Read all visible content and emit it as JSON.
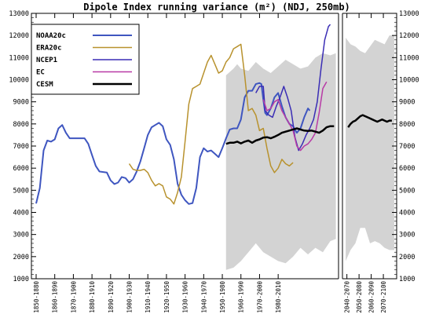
{
  "chart_data": {
    "type": "line",
    "title": "Dipole Index running variance (m²) (NDJ, 250mb)",
    "ylim": [
      1000,
      13000
    ],
    "yticks": [
      1000,
      2000,
      3000,
      4000,
      5000,
      6000,
      7000,
      8000,
      9000,
      10000,
      11000,
      12000,
      13000
    ],
    "xlim_years": [
      1850,
      2100
    ],
    "xticks": [
      {
        "label": "1850-1880",
        "year": 1850
      },
      {
        "label": "1860-1890",
        "year": 1860
      },
      {
        "label": "1870-1900",
        "year": 1870
      },
      {
        "label": "1880-1910",
        "year": 1880
      },
      {
        "label": "1890-1920",
        "year": 1890
      },
      {
        "label": "1900-1930",
        "year": 1900
      },
      {
        "label": "1910-1940",
        "year": 1910
      },
      {
        "label": "1920-1950",
        "year": 1920
      },
      {
        "label": "1930-1960",
        "year": 1930
      },
      {
        "label": "1940-1970",
        "year": 1940
      },
      {
        "label": "1950-1980",
        "year": 1950
      },
      {
        "label": "1960-1990",
        "year": 1960
      },
      {
        "label": "1970-2000",
        "year": 1970
      },
      {
        "label": "1980-2010",
        "year": 1980
      },
      {
        "label": "2040-2070",
        "year": 2023
      },
      {
        "label": "2050-2080",
        "year": 2033
      },
      {
        "label": "2060-2090",
        "year": 2043
      },
      {
        "label": "2070-2100",
        "year": 2053
      }
    ],
    "legend_position": "top-left",
    "series": [
      {
        "name": "NOAA20c",
        "color": "#3f56c0",
        "width": 2,
        "points": [
          [
            1850,
            4400
          ],
          [
            1852,
            5100
          ],
          [
            1854,
            6800
          ],
          [
            1856,
            7250
          ],
          [
            1858,
            7200
          ],
          [
            1860,
            7300
          ],
          [
            1862,
            7800
          ],
          [
            1864,
            7950
          ],
          [
            1866,
            7600
          ],
          [
            1868,
            7350
          ],
          [
            1872,
            7350
          ],
          [
            1876,
            7350
          ],
          [
            1878,
            7100
          ],
          [
            1880,
            6600
          ],
          [
            1882,
            6100
          ],
          [
            1884,
            5850
          ],
          [
            1888,
            5800
          ],
          [
            1890,
            5450
          ],
          [
            1892,
            5280
          ],
          [
            1894,
            5350
          ],
          [
            1896,
            5600
          ],
          [
            1898,
            5550
          ],
          [
            1900,
            5350
          ],
          [
            1902,
            5500
          ],
          [
            1904,
            5850
          ],
          [
            1906,
            6300
          ],
          [
            1908,
            6900
          ],
          [
            1910,
            7500
          ],
          [
            1912,
            7850
          ],
          [
            1914,
            7950
          ],
          [
            1916,
            8050
          ],
          [
            1918,
            7900
          ],
          [
            1920,
            7300
          ],
          [
            1922,
            7050
          ],
          [
            1924,
            6400
          ],
          [
            1926,
            5300
          ],
          [
            1928,
            4800
          ],
          [
            1930,
            4550
          ],
          [
            1932,
            4380
          ],
          [
            1934,
            4420
          ],
          [
            1936,
            5100
          ],
          [
            1938,
            6500
          ],
          [
            1940,
            6900
          ],
          [
            1942,
            6750
          ],
          [
            1944,
            6800
          ],
          [
            1946,
            6650
          ],
          [
            1948,
            6500
          ],
          [
            1950,
            6900
          ],
          [
            1952,
            7350
          ],
          [
            1954,
            7750
          ],
          [
            1956,
            7800
          ],
          [
            1958,
            7800
          ],
          [
            1960,
            8200
          ],
          [
            1962,
            9200
          ],
          [
            1964,
            9500
          ],
          [
            1966,
            9500
          ],
          [
            1968,
            9800
          ],
          [
            1970,
            9850
          ],
          [
            1971,
            9800
          ],
          [
            1972,
            9100
          ],
          [
            1973,
            8500
          ],
          [
            1974,
            8400
          ],
          [
            1976,
            8700
          ],
          [
            1978,
            9200
          ],
          [
            1980,
            9400
          ],
          [
            1982,
            8800
          ],
          [
            1984,
            8300
          ],
          [
            1986,
            8000
          ],
          [
            1988,
            7900
          ],
          [
            1990,
            7600
          ],
          [
            1992,
            7800
          ],
          [
            1994,
            8300
          ],
          [
            1996,
            8700
          ],
          [
            1997,
            8600
          ]
        ]
      },
      {
        "name": "ERA20c",
        "color": "#b8922e",
        "width": 1.5,
        "points": [
          [
            1900,
            6200
          ],
          [
            1902,
            5950
          ],
          [
            1904,
            5900
          ],
          [
            1906,
            5900
          ],
          [
            1908,
            5950
          ],
          [
            1910,
            5800
          ],
          [
            1912,
            5450
          ],
          [
            1914,
            5200
          ],
          [
            1916,
            5300
          ],
          [
            1918,
            5200
          ],
          [
            1920,
            4700
          ],
          [
            1922,
            4600
          ],
          [
            1924,
            4380
          ],
          [
            1926,
            4900
          ],
          [
            1928,
            5600
          ],
          [
            1930,
            7200
          ],
          [
            1932,
            8900
          ],
          [
            1934,
            9600
          ],
          [
            1936,
            9700
          ],
          [
            1938,
            9800
          ],
          [
            1940,
            10300
          ],
          [
            1942,
            10800
          ],
          [
            1944,
            11100
          ],
          [
            1946,
            10700
          ],
          [
            1948,
            10300
          ],
          [
            1950,
            10400
          ],
          [
            1952,
            10800
          ],
          [
            1954,
            11000
          ],
          [
            1956,
            11400
          ],
          [
            1958,
            11500
          ],
          [
            1960,
            11600
          ],
          [
            1962,
            10200
          ],
          [
            1964,
            8600
          ],
          [
            1966,
            8700
          ],
          [
            1968,
            8400
          ],
          [
            1970,
            7700
          ],
          [
            1972,
            7800
          ],
          [
            1974,
            6900
          ],
          [
            1976,
            6100
          ],
          [
            1978,
            5800
          ],
          [
            1980,
            6000
          ],
          [
            1982,
            6400
          ],
          [
            1984,
            6200
          ],
          [
            1986,
            6100
          ],
          [
            1988,
            6250
          ]
        ]
      },
      {
        "name": "NCEP1",
        "color": "#3a2db5",
        "width": 1.5,
        "points": [
          [
            1968,
            9400
          ],
          [
            1970,
            9700
          ],
          [
            1972,
            9700
          ],
          [
            1973,
            8600
          ],
          [
            1975,
            8400
          ],
          [
            1977,
            8300
          ],
          [
            1979,
            8800
          ],
          [
            1981,
            9200
          ],
          [
            1983,
            9700
          ],
          [
            1985,
            9200
          ],
          [
            1987,
            8600
          ],
          [
            1989,
            7400
          ],
          [
            1991,
            6800
          ],
          [
            1993,
            7100
          ],
          [
            1995,
            7500
          ],
          [
            1997,
            7800
          ],
          [
            1999,
            8200
          ],
          [
            2001,
            9000
          ],
          [
            2003,
            10500
          ],
          [
            2005,
            11800
          ],
          [
            2007,
            12400
          ],
          [
            2008,
            12500
          ]
        ]
      },
      {
        "name": "EC",
        "color": "#b83aa6",
        "width": 1.5,
        "points": [
          [
            1972,
            9100
          ],
          [
            1974,
            8600
          ],
          [
            1976,
            8700
          ],
          [
            1978,
            9000
          ],
          [
            1980,
            9100
          ],
          [
            1982,
            8600
          ],
          [
            1984,
            8300
          ],
          [
            1986,
            8000
          ],
          [
            1988,
            7700
          ],
          [
            1990,
            7000
          ],
          [
            1992,
            6800
          ],
          [
            1994,
            7000
          ],
          [
            1996,
            7100
          ],
          [
            1998,
            7300
          ],
          [
            2000,
            7600
          ],
          [
            2002,
            8500
          ],
          [
            2004,
            9600
          ],
          [
            2006,
            9900
          ]
        ]
      },
      {
        "name": "CESM",
        "color": "#000000",
        "width": 2.5,
        "points": [
          [
            1952,
            7100
          ],
          [
            1954,
            7150
          ],
          [
            1956,
            7150
          ],
          [
            1958,
            7200
          ],
          [
            1960,
            7120
          ],
          [
            1962,
            7200
          ],
          [
            1964,
            7250
          ],
          [
            1966,
            7150
          ],
          [
            1968,
            7250
          ],
          [
            1970,
            7300
          ],
          [
            1972,
            7380
          ],
          [
            1974,
            7400
          ],
          [
            1976,
            7350
          ],
          [
            1978,
            7420
          ],
          [
            1980,
            7500
          ],
          [
            1982,
            7600
          ],
          [
            1984,
            7650
          ],
          [
            1986,
            7700
          ],
          [
            1988,
            7750
          ],
          [
            1990,
            7800
          ],
          [
            1992,
            7750
          ],
          [
            1994,
            7700
          ],
          [
            1996,
            7680
          ],
          [
            1998,
            7700
          ],
          [
            2000,
            7650
          ],
          [
            2002,
            7600
          ],
          [
            2004,
            7700
          ],
          [
            2006,
            7850
          ],
          [
            2008,
            7900
          ],
          [
            2010,
            7900
          ],
          null,
          [
            2024,
            7850
          ],
          [
            2026,
            8000
          ],
          [
            2028,
            8100
          ],
          [
            2030,
            8150
          ],
          [
            2032,
            8250
          ],
          [
            2034,
            8350
          ],
          [
            2036,
            8400
          ],
          [
            2038,
            8350
          ],
          [
            2040,
            8300
          ],
          [
            2042,
            8250
          ],
          [
            2044,
            8200
          ],
          [
            2046,
            8150
          ],
          [
            2048,
            8100
          ],
          [
            2050,
            8150
          ],
          [
            2052,
            8200
          ],
          [
            2054,
            8150
          ],
          [
            2056,
            8100
          ],
          [
            2058,
            8150
          ],
          [
            2060,
            8150
          ]
        ]
      }
    ],
    "ensemble_range": {
      "color": "#d3d3d3",
      "segments": [
        {
          "upper": [
            [
              1952,
              10200
            ],
            [
              1956,
              10500
            ],
            [
              1958,
              10700
            ],
            [
              1960,
              10500
            ],
            [
              1964,
              10400
            ],
            [
              1968,
              10800
            ],
            [
              1972,
              10500
            ],
            [
              1976,
              10300
            ],
            [
              1980,
              10600
            ],
            [
              1984,
              10900
            ],
            [
              1988,
              10700
            ],
            [
              1992,
              10500
            ],
            [
              1996,
              10600
            ],
            [
              2000,
              11000
            ],
            [
              2004,
              11200
            ],
            [
              2008,
              11100
            ],
            [
              2011,
              11200
            ]
          ],
          "lower": [
            [
              1952,
              1400
            ],
            [
              1956,
              1500
            ],
            [
              1960,
              1800
            ],
            [
              1964,
              2200
            ],
            [
              1968,
              2600
            ],
            [
              1972,
              2200
            ],
            [
              1976,
              2000
            ],
            [
              1980,
              1800
            ],
            [
              1984,
              1700
            ],
            [
              1988,
              2000
            ],
            [
              1992,
              2400
            ],
            [
              1996,
              2100
            ],
            [
              2000,
              2400
            ],
            [
              2004,
              2200
            ],
            [
              2008,
              2700
            ],
            [
              2011,
              2800
            ]
          ]
        },
        {
          "upper": [
            [
              2022,
              11900
            ],
            [
              2026,
              11600
            ],
            [
              2030,
              11500
            ],
            [
              2034,
              11300
            ],
            [
              2038,
              11200
            ],
            [
              2042,
              11500
            ],
            [
              2046,
              11800
            ],
            [
              2050,
              11700
            ],
            [
              2054,
              11600
            ],
            [
              2058,
              12000
            ],
            [
              2062,
              12000
            ]
          ],
          "lower": [
            [
              2022,
              1800
            ],
            [
              2026,
              2300
            ],
            [
              2030,
              2600
            ],
            [
              2034,
              3300
            ],
            [
              2038,
              3300
            ],
            [
              2042,
              2600
            ],
            [
              2046,
              2700
            ],
            [
              2050,
              2600
            ],
            [
              2054,
              2400
            ],
            [
              2058,
              2300
            ],
            [
              2062,
              2300
            ]
          ]
        }
      ]
    }
  }
}
